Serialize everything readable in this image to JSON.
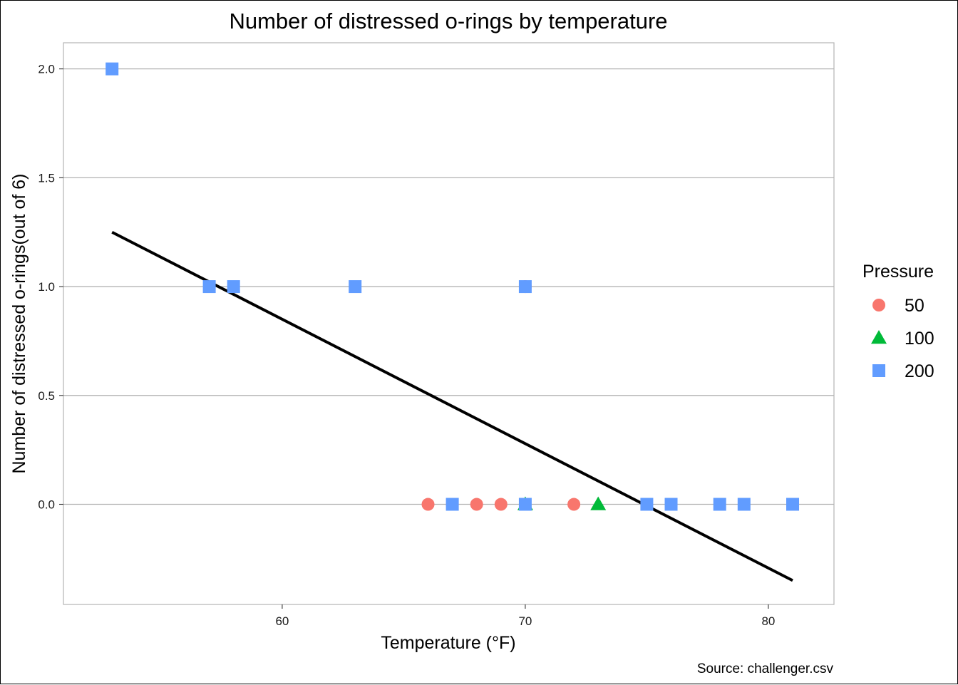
{
  "chart_data": {
    "type": "scatter",
    "title": "Number of distressed o-rings by temperature",
    "xlabel": "Temperature (°F)",
    "ylabel": "Number of distressed o-rings(out of 6)",
    "caption": "Source: challenger.csv",
    "xlim": [
      51.0,
      82.7
    ],
    "ylim": [
      -0.46,
      2.12
    ],
    "x_ticks": [
      {
        "value": 60,
        "label": "60"
      },
      {
        "value": 70,
        "label": "70"
      },
      {
        "value": 80,
        "label": "80"
      }
    ],
    "y_ticks": [
      {
        "value": 0,
        "label": "0.0"
      },
      {
        "value": 0.5,
        "label": "0.5"
      },
      {
        "value": 1,
        "label": "1.0"
      },
      {
        "value": 1.5,
        "label": "1.5"
      },
      {
        "value": 2,
        "label": "2.0"
      }
    ],
    "grid": "horizontal major lines",
    "legend": {
      "title": "Pressure",
      "position": "right",
      "entries": [
        {
          "label": "50",
          "shape": "circle",
          "color": "#F8766D"
        },
        {
          "label": "100",
          "shape": "triangle",
          "color": "#00BA38"
        },
        {
          "label": "200",
          "shape": "square",
          "color": "#619CFF"
        }
      ]
    },
    "series": [
      {
        "name": "50",
        "shape": "circle",
        "color": "#F8766D",
        "points": [
          {
            "x": 66,
            "y": 0
          },
          {
            "x": 67,
            "y": 0
          },
          {
            "x": 68,
            "y": 0
          },
          {
            "x": 69,
            "y": 0
          },
          {
            "x": 70,
            "y": 1
          },
          {
            "x": 72,
            "y": 0
          }
        ]
      },
      {
        "name": "100",
        "shape": "triangle",
        "color": "#00BA38",
        "points": [
          {
            "x": 70,
            "y": 0
          },
          {
            "x": 73,
            "y": 0
          }
        ]
      },
      {
        "name": "200",
        "shape": "square",
        "color": "#619CFF",
        "points": [
          {
            "x": 53,
            "y": 2
          },
          {
            "x": 57,
            "y": 1
          },
          {
            "x": 58,
            "y": 1
          },
          {
            "x": 63,
            "y": 1
          },
          {
            "x": 67,
            "y": 0
          },
          {
            "x": 70,
            "y": 1
          },
          {
            "x": 70,
            "y": 0
          },
          {
            "x": 75,
            "y": 0
          },
          {
            "x": 76,
            "y": 0
          },
          {
            "x": 78,
            "y": 0
          },
          {
            "x": 79,
            "y": 0
          },
          {
            "x": 81,
            "y": 0
          }
        ]
      }
    ],
    "trend_line": {
      "color": "#000000",
      "points": [
        {
          "x": 53,
          "y": 1.25
        },
        {
          "x": 81,
          "y": -0.35
        }
      ]
    }
  }
}
